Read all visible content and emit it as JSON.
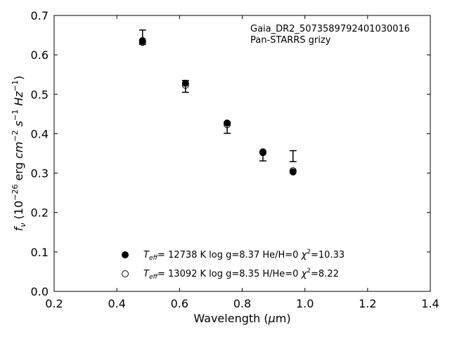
{
  "chart_data": {
    "type": "scatter",
    "annotation": [
      "Gaia_DR2_5073589792401030016",
      "Pan-STARRS grizy"
    ],
    "xlabel": {
      "pre": "Wavelength (",
      "sym": "μ",
      "post": "m)"
    },
    "ylabel": {
      "sym": "f",
      "sub": "ν",
      "pre": " (10",
      "exp1": "−26",
      "mid1": " erg ",
      "cm": "cm",
      "exp2": "−2",
      "s": " s",
      "exp3": "−1",
      "hz": " Hz",
      "exp4": "−1",
      "close": ")"
    },
    "xlim": [
      0.2,
      1.4
    ],
    "ylim": [
      0.0,
      0.7
    ],
    "xticks": [
      "0.2",
      "0.4",
      "0.6",
      "0.8",
      "1.0",
      "1.2",
      "1.4"
    ],
    "yticks": [
      "0.0",
      "0.1",
      "0.2",
      "0.3",
      "0.4",
      "0.5",
      "0.6",
      "0.7"
    ],
    "observed": [
      {
        "x": 0.482,
        "y": 0.645,
        "yerr": 0.018
      },
      {
        "x": 0.619,
        "y": 0.52,
        "yerr": 0.015
      },
      {
        "x": 0.752,
        "y": 0.415,
        "yerr": 0.014
      },
      {
        "x": 0.866,
        "y": 0.342,
        "yerr": 0.011
      },
      {
        "x": 0.962,
        "y": 0.343,
        "yerr": 0.014
      }
    ],
    "series": [
      {
        "marker": "filled",
        "legend": {
          "tsym": "T",
          "tsub": "eff",
          "text": "= 12738 K  log g=8.37  He/H=0  ",
          "chi": "χ",
          "chiexp": "2",
          "chival": "=10.33"
        },
        "x": [
          0.482,
          0.619,
          0.752,
          0.866,
          0.962
        ],
        "y": [
          0.636,
          0.528,
          0.427,
          0.352,
          0.303
        ]
      },
      {
        "marker": "open",
        "legend": {
          "tsym": "T",
          "tsub": "eff",
          "text": "= 13092 K  log g=8.35  H/He=0  ",
          "chi": "χ",
          "chiexp": "2",
          "chival": "=8.22"
        },
        "x": [
          0.482,
          0.619,
          0.752,
          0.866,
          0.962
        ],
        "y": [
          0.632,
          0.523,
          0.423,
          0.354,
          0.306
        ]
      }
    ]
  }
}
